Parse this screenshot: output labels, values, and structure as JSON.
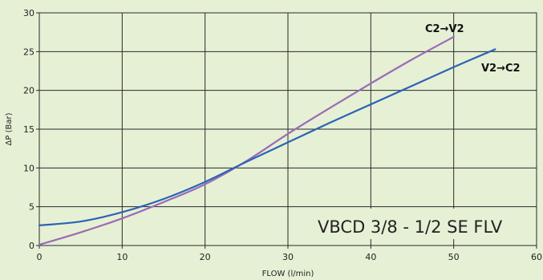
{
  "chart_data": {
    "type": "line",
    "title": "",
    "xlabel": "FLOW (l/min)",
    "ylabel": "ΔP (Bar)",
    "xlim": [
      0,
      60
    ],
    "ylim": [
      0,
      30
    ],
    "x_ticks": [
      0,
      10,
      20,
      30,
      40,
      50,
      60
    ],
    "y_ticks": [
      0,
      5,
      10,
      15,
      20,
      25,
      30
    ],
    "grid": true,
    "legend": "none",
    "annotation": "VBCD 3/8 - 1/2 SE FLV",
    "series": [
      {
        "name": "C2→V2",
        "color": "#9b6bb5",
        "x": [
          0,
          5,
          10,
          15,
          20,
          25,
          30,
          35,
          40,
          45,
          50
        ],
        "y": [
          0.1,
          1.7,
          3.5,
          5.6,
          7.9,
          10.9,
          14.4,
          17.7,
          20.9,
          24.0,
          26.9
        ]
      },
      {
        "name": "V2→C2",
        "color": "#2c63b5",
        "x": [
          0,
          5,
          10,
          15,
          20,
          25,
          30,
          35,
          40,
          45,
          50,
          55
        ],
        "y": [
          2.6,
          3.1,
          4.3,
          6.0,
          8.2,
          10.8,
          13.3,
          15.8,
          18.2,
          20.6,
          23.0,
          25.3
        ]
      }
    ]
  }
}
